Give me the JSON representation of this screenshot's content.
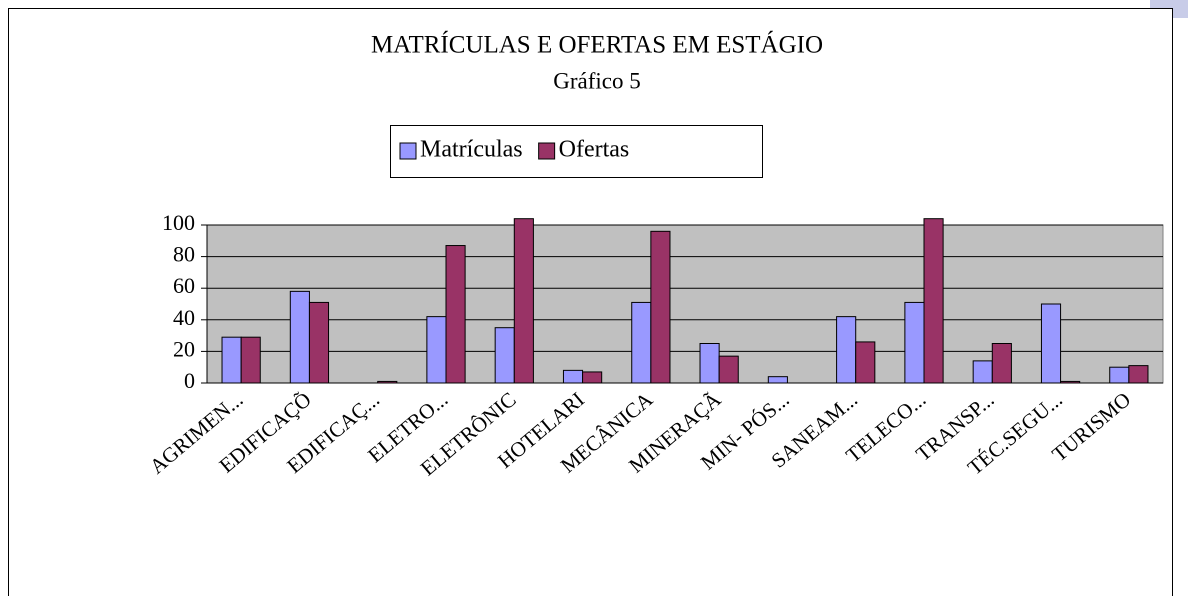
{
  "chart_data": {
    "type": "bar",
    "title": "MATRÍCULAS E OFERTAS EM ESTÁGIO",
    "subtitle": "Gráfico 5",
    "categories": [
      "AGRIMEN...",
      "EDIFICAÇÕ",
      "EDIFICAÇ...",
      "ELETRO...",
      "ELETRÔNIC",
      "HOTELARI",
      "MECÂNICA",
      "MINERAÇÃ",
      "MIN- PÓS...",
      "SANEAM...",
      "TELECO...",
      "TRANSP...",
      "TÉC.SEGU...",
      "TURISMO"
    ],
    "series": [
      {
        "name": "Matrículas",
        "color": "#9999ff",
        "values": [
          29,
          58,
          0,
          42,
          35,
          8,
          51,
          25,
          4,
          42,
          51,
          14,
          50,
          10
        ]
      },
      {
        "name": "Ofertas",
        "color": "#993366",
        "values": [
          29,
          51,
          1,
          87,
          104,
          7,
          96,
          17,
          0,
          26,
          104,
          25,
          1,
          11
        ]
      }
    ],
    "ylim": [
      0,
      100
    ],
    "yticks": [
      0,
      20,
      40,
      60,
      80,
      100
    ],
    "grid": true,
    "legend": "top"
  }
}
